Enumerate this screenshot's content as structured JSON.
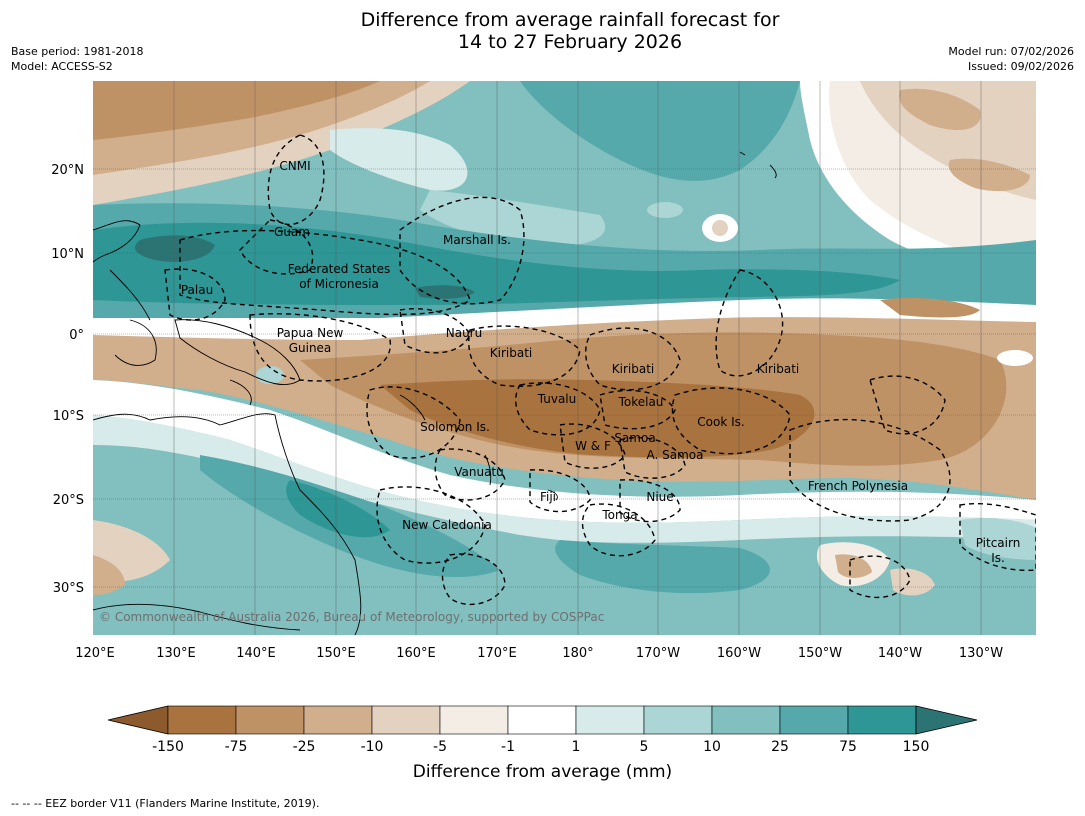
{
  "title": {
    "line1": "Difference from average rainfall forecast for",
    "line2": "14 to 27 February 2026"
  },
  "meta": {
    "base_period": "Base period: 1981-2018",
    "model": "Model: ACCESS-S2",
    "model_run": "Model run: 07/02/2026",
    "issued": "Issued: 09/02/2026"
  },
  "map": {
    "lat_ticks": [
      "20°N",
      "10°N",
      "0°",
      "10°S",
      "20°S",
      "30°S"
    ],
    "lon_ticks": [
      "120°E",
      "130°E",
      "140°E",
      "150°E",
      "160°E",
      "170°E",
      "180°",
      "170°W",
      "160°W",
      "150°W",
      "140°W",
      "130°W"
    ],
    "regions": [
      "CNMI",
      "Guam",
      "Marshall Is.",
      "Federated States",
      "of Micronesia",
      "Palau",
      "Papua New",
      "Guinea",
      "Nauru",
      "Kiribati",
      "Kiribati",
      "Kiribati",
      "Tuvalu",
      "Tokelau",
      "Solomon Is.",
      "Cook Is.",
      "Samoa",
      "W & F",
      "A. Samoa",
      "Vanuatu",
      "Fiji",
      "Niue",
      "Tonga",
      "French Polynesia",
      "New Caledonia",
      "Pitcairn",
      "Is."
    ],
    "copyright": "© Commonwealth of Australia 2026, Bureau of Meteorology, supported by COSPPac"
  },
  "colorbar": {
    "labels": [
      "-150",
      "-75",
      "-25",
      "-10",
      "-5",
      "-1",
      "1",
      "5",
      "10",
      "25",
      "75",
      "150"
    ],
    "colors": [
      "#8c5a2c",
      "#a8733e",
      "#bf9265",
      "#d1ae8c",
      "#e4d2c0",
      "#f3ede6",
      "#ffffff",
      "#d6ebea",
      "#acd5d5",
      "#82bfbf",
      "#56a9aa",
      "#2e9694",
      "#2c7474"
    ],
    "title": "Difference from average (mm)"
  },
  "footnote": "--  --  -- EEZ border V11 (Flanders Marine Institute, 2019)."
}
